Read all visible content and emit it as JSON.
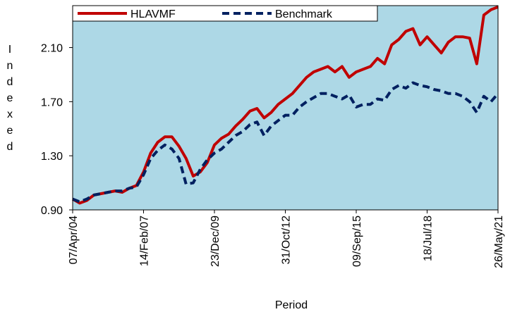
{
  "chart_data": {
    "type": "line",
    "y_label": "Indexed",
    "x_label": "Period",
    "categories": [
      "07/Apr/04",
      null,
      null,
      null,
      null,
      null,
      null,
      null,
      null,
      null,
      "14/Feb/07",
      null,
      null,
      null,
      null,
      null,
      null,
      null,
      null,
      null,
      "23/Dec/09",
      null,
      null,
      null,
      null,
      null,
      null,
      null,
      null,
      null,
      "31/Oct/12",
      null,
      null,
      null,
      null,
      null,
      null,
      null,
      null,
      null,
      "09/Sep/15",
      null,
      null,
      null,
      null,
      null,
      null,
      null,
      null,
      null,
      "18/Jul/18",
      null,
      null,
      null,
      null,
      null,
      null,
      null,
      null,
      null,
      "26/May/21"
    ],
    "series": [
      {
        "name": "HLAVMF",
        "color": "#c00000",
        "dashed": false,
        "values": [
          0.98,
          0.95,
          0.97,
          1.01,
          1.02,
          1.03,
          1.04,
          1.03,
          1.06,
          1.08,
          1.18,
          1.32,
          1.4,
          1.44,
          1.44,
          1.37,
          1.28,
          1.15,
          1.18,
          1.25,
          1.38,
          1.43,
          1.46,
          1.52,
          1.57,
          1.63,
          1.65,
          1.58,
          1.62,
          1.68,
          1.72,
          1.76,
          1.82,
          1.88,
          1.92,
          1.94,
          1.96,
          1.92,
          1.96,
          1.88,
          1.92,
          1.94,
          1.96,
          2.02,
          1.98,
          2.12,
          2.16,
          2.22,
          2.24,
          2.12,
          2.18,
          2.12,
          2.06,
          2.14,
          2.18,
          2.18,
          2.17,
          1.98,
          2.34,
          2.38,
          2.4
        ]
      },
      {
        "name": "Benchmark",
        "color": "#002060",
        "dashed": true,
        "values": [
          0.98,
          0.96,
          0.98,
          1.01,
          1.02,
          1.03,
          1.04,
          1.04,
          1.06,
          1.07,
          1.16,
          1.28,
          1.34,
          1.38,
          1.35,
          1.28,
          1.09,
          1.1,
          1.2,
          1.27,
          1.32,
          1.35,
          1.4,
          1.45,
          1.48,
          1.53,
          1.55,
          1.45,
          1.52,
          1.56,
          1.6,
          1.6,
          1.66,
          1.7,
          1.73,
          1.76,
          1.76,
          1.74,
          1.72,
          1.75,
          1.66,
          1.68,
          1.68,
          1.72,
          1.71,
          1.79,
          1.82,
          1.8,
          1.84,
          1.82,
          1.81,
          1.79,
          1.78,
          1.76,
          1.76,
          1.74,
          1.7,
          1.62,
          1.74,
          1.7,
          1.76
        ]
      }
    ],
    "ylim": [
      0.9,
      2.41
    ],
    "yticks": [
      {
        "value": 0.9,
        "label": "0.90"
      },
      {
        "value": 1.3,
        "label": "1.30"
      },
      {
        "value": 1.7,
        "label": "1.70"
      },
      {
        "value": 2.1,
        "label": "2.10"
      }
    ],
    "background": "#add8e6",
    "legend": "top"
  }
}
